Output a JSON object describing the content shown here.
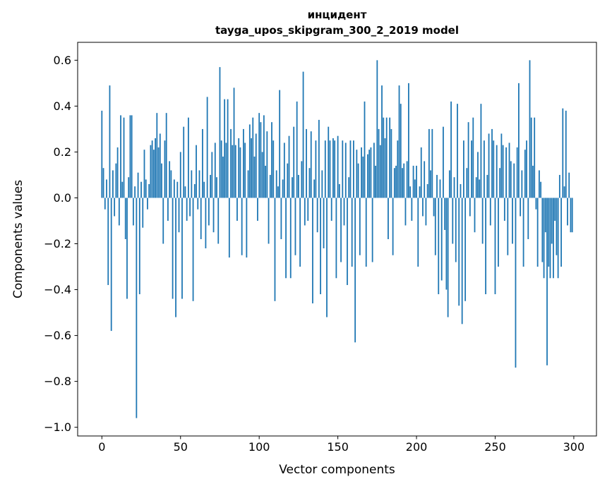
{
  "figure": {
    "background": "#ffffff"
  },
  "chart_data": {
    "type": "bar",
    "title": "инцидент",
    "subtitle": "tayga_upos_skipgram_300_2_2019 model",
    "xlabel": "Vector components",
    "ylabel": "Components values",
    "bar_color": "#1f77b4",
    "n_components": 300,
    "xlim": [
      -15.4,
      314.4
    ],
    "ylim": [
      -1.038,
      0.678
    ],
    "xticks": [
      0,
      50,
      100,
      150,
      200,
      250,
      300
    ],
    "xtick_labels": [
      "0",
      "50",
      "100",
      "150",
      "200",
      "250",
      "300"
    ],
    "yticks": [
      0.6,
      0.4,
      0.2,
      0.0,
      -0.2,
      -0.4,
      -0.6,
      -0.8,
      -1.0
    ],
    "ytick_labels": [
      "0.6",
      "0.4",
      "0.2",
      "0.0",
      "−0.2",
      "−0.4",
      "−0.6",
      "−0.8",
      "−1.0"
    ],
    "values": [
      0.38,
      0.13,
      -0.05,
      0.08,
      -0.38,
      0.49,
      -0.58,
      0.12,
      -0.08,
      0.15,
      0.22,
      -0.12,
      0.36,
      0.07,
      0.35,
      -0.18,
      -0.44,
      0.09,
      0.36,
      0.36,
      -0.12,
      0.05,
      -0.96,
      0.11,
      -0.42,
      0.07,
      -0.13,
      0.21,
      0.08,
      -0.05,
      0.06,
      0.23,
      0.25,
      0.21,
      0.26,
      0.37,
      0.22,
      0.28,
      0.15,
      -0.2,
      0.25,
      0.37,
      -0.1,
      0.16,
      0.12,
      -0.44,
      0.08,
      -0.52,
      0.07,
      -0.15,
      0.2,
      -0.44,
      0.31,
      0.05,
      -0.1,
      0.35,
      -0.08,
      0.12,
      -0.45,
      0.06,
      0.23,
      -0.05,
      0.12,
      -0.18,
      0.3,
      0.07,
      -0.22,
      0.44,
      -0.12,
      0.1,
      0.2,
      -0.15,
      0.24,
      0.09,
      -0.2,
      0.57,
      0.25,
      0.18,
      0.43,
      0.24,
      0.43,
      -0.26,
      0.3,
      0.23,
      0.48,
      0.23,
      -0.1,
      0.26,
      0.22,
      -0.25,
      0.3,
      0.24,
      -0.26,
      0.12,
      0.32,
      0.26,
      0.35,
      0.18,
      0.28,
      -0.1,
      0.37,
      0.33,
      0.2,
      0.36,
      0.14,
      0.29,
      -0.2,
      0.1,
      0.33,
      0.25,
      -0.45,
      0.12,
      0.05,
      0.47,
      -0.18,
      0.08,
      0.24,
      -0.35,
      0.15,
      0.27,
      -0.35,
      0.09,
      0.31,
      -0.25,
      0.42,
      0.1,
      -0.3,
      0.16,
      0.55,
      -0.12,
      0.3,
      -0.1,
      0.13,
      0.29,
      -0.46,
      0.08,
      0.25,
      -0.15,
      0.34,
      -0.42,
      0.12,
      -0.22,
      0.25,
      -0.52,
      0.31,
      0.25,
      -0.1,
      0.26,
      0.25,
      -0.35,
      0.27,
      0.06,
      -0.28,
      0.25,
      -0.12,
      0.24,
      -0.38,
      0.09,
      0.25,
      -0.3,
      0.25,
      -0.63,
      0.21,
      0.15,
      -0.25,
      0.22,
      0.18,
      0.42,
      -0.3,
      0.19,
      0.21,
      0.22,
      -0.28,
      0.24,
      0.14,
      0.6,
      0.3,
      0.23,
      0.49,
      0.35,
      0.26,
      0.35,
      -0.18,
      0.35,
      0.3,
      -0.25,
      0.13,
      0.14,
      0.25,
      0.49,
      0.41,
      0.13,
      0.15,
      -0.12,
      0.16,
      0.5,
      0.05,
      -0.1,
      0.14,
      0.08,
      0.14,
      -0.3,
      0.05,
      0.22,
      -0.08,
      0.16,
      -0.12,
      0.06,
      0.3,
      0.12,
      0.3,
      -0.08,
      -0.25,
      0.1,
      -0.42,
      0.08,
      -0.36,
      0.31,
      -0.14,
      -0.4,
      -0.52,
      0.12,
      0.42,
      -0.2,
      0.09,
      -0.28,
      0.41,
      -0.47,
      0.06,
      -0.55,
      0.25,
      -0.45,
      0.13,
      0.33,
      -0.08,
      0.25,
      0.35,
      -0.15,
      0.09,
      0.2,
      0.08,
      0.41,
      -0.2,
      0.25,
      -0.42,
      0.1,
      0.28,
      -0.12,
      0.3,
      0.25,
      -0.42,
      0.23,
      -0.3,
      0.13,
      0.28,
      0.23,
      -0.1,
      0.22,
      -0.25,
      0.24,
      0.16,
      -0.2,
      0.15,
      -0.74,
      0.22,
      0.5,
      -0.08,
      0.12,
      -0.3,
      0.21,
      0.25,
      -0.18,
      0.6,
      0.35,
      0.14,
      0.35,
      -0.05,
      -0.3,
      0.12,
      0.07,
      -0.28,
      -0.35,
      -0.15,
      -0.73,
      -0.3,
      -0.35,
      -0.2,
      -0.35,
      -0.1,
      -0.25,
      -0.35,
      0.1,
      -0.3,
      0.39,
      0.05,
      0.38,
      -0.12,
      0.11,
      -0.15,
      -0.15
    ]
  }
}
